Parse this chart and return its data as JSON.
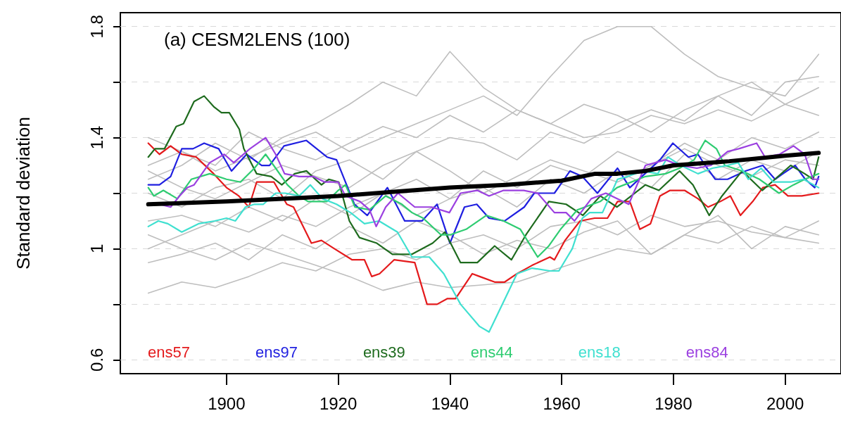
{
  "chart_data": {
    "type": "line",
    "title": "(a) CESM2LENS (100)",
    "ylabel": "Standard deviation",
    "xlim": [
      1881,
      2010
    ],
    "xticks": [
      1900,
      1920,
      1940,
      1960,
      1980,
      2000
    ],
    "ylim": [
      0.55,
      1.85
    ],
    "yticks": [
      0.6,
      {
        "value": 0.8,
        "label": null
      },
      1.0,
      {
        "value": 1.2,
        "label": null
      },
      1.4,
      {
        "value": 1.6,
        "label": null
      },
      1.8
    ],
    "grid": "y",
    "legend": "bottom",
    "marker": "none",
    "line_style": "solid",
    "series": [
      {
        "color": "#bebebe",
        "x": [
          1886,
          1892,
          1898,
          1904,
          1910,
          1916,
          1922,
          1928,
          1934,
          1940,
          1946,
          1952,
          1958,
          1964,
          1970,
          1976,
          1982,
          1988,
          1994,
          2000,
          2006
        ],
        "values": [
          1.3,
          1.35,
          1.28,
          1.33,
          1.38,
          1.42,
          1.35,
          1.4,
          1.45,
          1.5,
          1.55,
          1.48,
          1.62,
          1.75,
          1.8,
          1.8,
          1.7,
          1.62,
          1.58,
          1.55,
          1.7
        ]
      },
      {
        "color": "#bebebe",
        "x": [
          1886,
          1892,
          1898,
          1904,
          1910,
          1916,
          1922,
          1928,
          1934,
          1940,
          1946,
          1952,
          1958,
          1964,
          1970,
          1976,
          1982,
          1988,
          1994,
          2000,
          2006
        ],
        "values": [
          1.25,
          1.3,
          1.38,
          1.32,
          1.4,
          1.45,
          1.52,
          1.6,
          1.55,
          1.71,
          1.58,
          1.5,
          1.45,
          1.4,
          1.42,
          1.48,
          1.45,
          1.5,
          1.46,
          1.52,
          1.48
        ]
      },
      {
        "color": "#bebebe",
        "x": [
          1886,
          1892,
          1898,
          1904,
          1910,
          1916,
          1922,
          1928,
          1934,
          1940,
          1946,
          1952,
          1958,
          1964,
          1970,
          1976,
          1982,
          1988,
          1994,
          2000,
          2006
        ],
        "values": [
          0.84,
          0.88,
          0.86,
          0.9,
          0.95,
          0.92,
          0.98,
          1.0,
          0.96,
          1.02,
          1.05,
          1.0,
          1.08,
          1.1,
          1.05,
          1.12,
          1.08,
          1.1,
          1.06,
          1.04,
          1.02
        ]
      },
      {
        "color": "#bebebe",
        "x": [
          1886,
          1892,
          1898,
          1904,
          1910,
          1916,
          1922,
          1928,
          1934,
          1940,
          1946,
          1952,
          1958,
          1964,
          1970,
          1976,
          1982,
          1988,
          1994,
          2000,
          2006
        ],
        "values": [
          1.05,
          1.0,
          0.96,
          1.02,
          0.98,
          0.94,
          0.9,
          0.85,
          0.88,
          0.86,
          0.87,
          0.88,
          0.92,
          0.96,
          1.0,
          0.98,
          1.05,
          1.02,
          1.08,
          1.04,
          1.1
        ]
      },
      {
        "color": "#bebebe",
        "x": [
          1886,
          1892,
          1898,
          1904,
          1910,
          1916,
          1922,
          1928,
          1934,
          1940,
          1946,
          1952,
          1958,
          1964,
          1970,
          1976,
          1982,
          1988,
          1994,
          2000,
          2006
        ],
        "values": [
          1.2,
          1.15,
          1.22,
          1.25,
          1.18,
          1.28,
          1.32,
          1.25,
          1.35,
          1.4,
          1.38,
          1.32,
          1.42,
          1.38,
          1.45,
          1.5,
          1.46,
          1.55,
          1.6,
          1.52,
          1.58
        ]
      },
      {
        "color": "#bebebe",
        "x": [
          1886,
          1892,
          1898,
          1904,
          1910,
          1916,
          1922,
          1928,
          1934,
          1940,
          1946,
          1952,
          1958,
          1964,
          1970,
          1976,
          1982,
          1988,
          1994,
          2000,
          2006
        ],
        "values": [
          1.0,
          1.05,
          1.1,
          1.06,
          1.12,
          1.08,
          1.15,
          1.2,
          1.12,
          1.18,
          1.22,
          1.15,
          1.25,
          1.2,
          1.28,
          1.22,
          1.34,
          1.25,
          1.32,
          1.28,
          1.35
        ]
      },
      {
        "color": "#bebebe",
        "x": [
          1886,
          1892,
          1898,
          1904,
          1910,
          1916,
          1922,
          1928,
          1934,
          1940,
          1946,
          1952,
          1958,
          1964,
          1970,
          1976,
          1982,
          1988,
          1994,
          2000,
          2006
        ],
        "values": [
          1.4,
          1.35,
          1.3,
          1.42,
          1.36,
          1.32,
          1.38,
          1.44,
          1.4,
          1.48,
          1.42,
          1.5,
          1.45,
          1.52,
          1.48,
          1.42,
          1.5,
          1.55,
          1.48,
          1.6,
          1.62
        ]
      },
      {
        "color": "#bebebe",
        "x": [
          1886,
          1892,
          1898,
          1904,
          1910,
          1916,
          1922,
          1928,
          1934,
          1940,
          1946,
          1952,
          1958,
          1964,
          1970,
          1976,
          1982,
          1988,
          1994,
          2000,
          2006
        ],
        "values": [
          0.95,
          0.98,
          1.02,
          0.96,
          1.05,
          1.0,
          1.08,
          1.02,
          1.1,
          1.05,
          0.98,
          1.03,
          1.0,
          1.06,
          1.1,
          0.98,
          1.05,
          1.12,
          1.0,
          1.08,
          1.05
        ]
      },
      {
        "color": "#bebebe",
        "x": [
          1886,
          1892,
          1898,
          1904,
          1910,
          1916,
          1922,
          1928,
          1934,
          1940,
          1946,
          1952,
          1958,
          1964,
          1970,
          1976,
          1982,
          1988,
          1994,
          2000,
          2006
        ],
        "values": [
          1.1,
          1.12,
          1.08,
          1.15,
          1.1,
          1.18,
          1.12,
          1.2,
          1.25,
          1.18,
          1.28,
          1.22,
          1.3,
          1.26,
          1.35,
          1.3,
          1.38,
          1.32,
          1.4,
          1.36,
          1.42
        ]
      },
      {
        "color": "#bebebe",
        "x": [
          1886,
          1892,
          1898,
          1904,
          1910,
          1916,
          1922,
          1928,
          1934,
          1940,
          1946,
          1952,
          1958,
          1964,
          1970,
          1976,
          1982,
          1988,
          1994,
          2000,
          2006
        ],
        "values": [
          1.28,
          1.22,
          1.18,
          1.24,
          1.3,
          1.26,
          1.22,
          1.3,
          1.35,
          1.28,
          1.2,
          1.26,
          1.32,
          1.28,
          1.24,
          1.3,
          1.36,
          1.3,
          1.26,
          1.32,
          1.3
        ]
      },
      {
        "name": "ens57",
        "color": "#e41a1c",
        "x": [
          1886,
          1888,
          1890,
          1892,
          1894.6,
          1897.7,
          1900,
          1902.2,
          1904,
          1905.4,
          1908.5,
          1910.8,
          1912,
          1915.2,
          1917,
          1919.3,
          1922.5,
          1924.7,
          1926,
          1927.4,
          1930,
          1933.7,
          1935.9,
          1937.7,
          1939.5,
          1941,
          1944,
          1945.3,
          1948,
          1949.8,
          1952,
          1954.7,
          1957.9,
          1958.7,
          1960.6,
          1963.3,
          1965.9,
          1968.2,
          1970,
          1972.2,
          1974,
          1975.9,
          1977.6,
          1979.4,
          1982,
          1984.4,
          1986.2,
          1988.4,
          1990.2,
          1992,
          1994.2,
          1996,
          1998.2,
          2000.5,
          2003,
          2006
        ],
        "values": [
          1.38,
          1.34,
          1.37,
          1.34,
          1.33,
          1.27,
          1.22,
          1.19,
          1.15,
          1.24,
          1.24,
          1.16,
          1.15,
          1.02,
          1.03,
          1.0,
          0.96,
          0.96,
          0.9,
          0.91,
          0.96,
          0.95,
          0.8,
          0.8,
          0.82,
          0.82,
          0.91,
          0.9,
          0.88,
          0.88,
          0.91,
          0.94,
          0.97,
          0.96,
          1.03,
          1.1,
          1.11,
          1.11,
          1.17,
          1.17,
          1.07,
          1.09,
          1.19,
          1.21,
          1.21,
          1.18,
          1.15,
          1.17,
          1.19,
          1.12,
          1.17,
          1.22,
          1.23,
          1.19,
          1.19,
          1.2
        ]
      },
      {
        "name": "ens97",
        "color": "#1f1fe0",
        "x": [
          1886,
          1888,
          1890,
          1892,
          1894,
          1896,
          1898.6,
          1900.9,
          1903.6,
          1906.3,
          1907.7,
          1910.3,
          1914.3,
          1918,
          1919.7,
          1922.9,
          1925.2,
          1928.8,
          1931.9,
          1935,
          1937.7,
          1940,
          1942.6,
          1944.8,
          1947,
          1949.8,
          1953.3,
          1955.1,
          1958.7,
          1961.5,
          1963.7,
          1966.4,
          1970,
          1972.2,
          1974.9,
          1977.6,
          1979.9,
          1982.7,
          1984.4,
          1985.7,
          1987.5,
          1989.7,
          1992.9,
          1996,
          1998.2,
          1999.6,
          2001.8,
          2003.6,
          2005.3,
          2006
        ],
        "values": [
          1.23,
          1.23,
          1.26,
          1.36,
          1.36,
          1.38,
          1.36,
          1.28,
          1.34,
          1.3,
          1.3,
          1.37,
          1.39,
          1.33,
          1.32,
          1.16,
          1.12,
          1.22,
          1.1,
          1.1,
          1.16,
          1.02,
          1.15,
          1.16,
          1.11,
          1.1,
          1.15,
          1.2,
          1.2,
          1.28,
          1.26,
          1.2,
          1.29,
          1.22,
          1.27,
          1.32,
          1.38,
          1.33,
          1.34,
          1.3,
          1.25,
          1.25,
          1.28,
          1.3,
          1.25,
          1.27,
          1.3,
          1.25,
          1.22,
          1.26
        ]
      },
      {
        "name": "ens39",
        "color": "#1e6b1e",
        "x": [
          1886,
          1887.2,
          1888.9,
          1891,
          1892.3,
          1894.2,
          1896,
          1897.8,
          1899.1,
          1900.5,
          1902.3,
          1903.1,
          1905.4,
          1908,
          1909.9,
          1912.2,
          1914.3,
          1917,
          1918.3,
          1920.1,
          1922,
          1923.8,
          1926.9,
          1929.7,
          1933.2,
          1936.9,
          1939.1,
          1941.9,
          1944.9,
          1948,
          1951,
          1953.6,
          1957.7,
          1960.8,
          1963.8,
          1966.9,
          1969.9,
          1975,
          1977.4,
          1981.1,
          1983.5,
          1986.4,
          1988.7,
          1992.3,
          1995.9,
          2001,
          2003.5,
          2005,
          2006
        ],
        "values": [
          1.33,
          1.36,
          1.36,
          1.44,
          1.45,
          1.53,
          1.55,
          1.51,
          1.49,
          1.49,
          1.43,
          1.36,
          1.27,
          1.26,
          1.23,
          1.27,
          1.28,
          1.23,
          1.25,
          1.24,
          1.1,
          1.04,
          1.02,
          0.98,
          0.98,
          1.02,
          1.06,
          0.95,
          0.95,
          1.01,
          0.96,
          1.05,
          1.17,
          1.16,
          1.12,
          1.19,
          1.15,
          1.23,
          1.21,
          1.28,
          1.23,
          1.12,
          1.19,
          1.28,
          1.21,
          1.3,
          1.27,
          1.25,
          1.33
        ]
      },
      {
        "name": "ens44",
        "color": "#2ecc71",
        "x": [
          1886,
          1887,
          1888.7,
          1891.2,
          1893.7,
          1897,
          1900,
          1902.5,
          1905,
          1907,
          1908.8,
          1910.9,
          1913,
          1914.6,
          1918,
          1920,
          1921.3,
          1923,
          1925.6,
          1928.5,
          1931.4,
          1933.2,
          1935.2,
          1938.4,
          1940,
          1942.9,
          1946.5,
          1949.6,
          1952.6,
          1955.7,
          1957.7,
          1959.8,
          1962.8,
          1966.9,
          1969.9,
          1975,
          1978.6,
          1981.1,
          1983.7,
          1985.7,
          1987.7,
          1989.2,
          1992.3,
          1995.4,
          1998.9,
          2001.5,
          2003.5,
          2006
        ],
        "values": [
          1.22,
          1.19,
          1.21,
          1.18,
          1.25,
          1.27,
          1.25,
          1.24,
          1.29,
          1.34,
          1.29,
          1.23,
          1.19,
          1.17,
          1.17,
          1.21,
          1.23,
          1.15,
          1.14,
          1.19,
          1.16,
          1.13,
          1.11,
          1.05,
          1.05,
          1.07,
          1.12,
          1.1,
          1.07,
          0.97,
          1.01,
          1.07,
          1.14,
          1.17,
          1.22,
          1.26,
          1.27,
          1.29,
          1.32,
          1.39,
          1.36,
          1.3,
          1.28,
          1.25,
          1.2,
          1.23,
          1.25,
          1.27
        ]
      },
      {
        "name": "ens18",
        "color": "#40e0d0",
        "x": [
          1886,
          1887.8,
          1889.5,
          1892,
          1895,
          1897.9,
          1900,
          1901.6,
          1903.4,
          1905,
          1906.6,
          1908.8,
          1910.5,
          1913,
          1915,
          1917.2,
          1919.7,
          1922.2,
          1924.7,
          1927.3,
          1930.6,
          1933.2,
          1936.3,
          1938.9,
          1941.9,
          1945.3,
          1947,
          1952,
          1954.7,
          1957.9,
          1959.5,
          1961.9,
          1963.7,
          1965,
          1967.3,
          1970,
          1971.8,
          1974.5,
          1977.2,
          1979,
          1981.3,
          1984.4,
          1987,
          1989.7,
          1991.6,
          1993.4,
          1995.7,
          1997.9,
          2001,
          2003.3,
          2006
        ],
        "values": [
          1.08,
          1.1,
          1.09,
          1.06,
          1.09,
          1.1,
          1.11,
          1.1,
          1.15,
          1.16,
          1.16,
          1.2,
          1.2,
          1.19,
          1.23,
          1.18,
          1.16,
          1.13,
          1.09,
          1.1,
          1.06,
          0.97,
          0.97,
          0.91,
          0.8,
          0.72,
          0.7,
          0.91,
          0.93,
          0.92,
          0.92,
          1.0,
          1.11,
          1.13,
          1.13,
          1.25,
          1.26,
          1.28,
          1.27,
          1.33,
          1.3,
          1.27,
          1.29,
          1.3,
          1.31,
          1.25,
          1.29,
          1.24,
          1.24,
          1.25,
          1.22
        ]
      },
      {
        "name": "ens84",
        "color": "#9b40e0",
        "x": [
          1888,
          1890,
          1891.6,
          1893,
          1894.2,
          1897,
          1899.6,
          1901.3,
          1904.2,
          1907,
          1908.8,
          1910.4,
          1913,
          1915.5,
          1917.6,
          1920,
          1921.3,
          1923.9,
          1925.6,
          1926.8,
          1928.5,
          1930.7,
          1933.7,
          1936.7,
          1939.9,
          1941.9,
          1944.9,
          1947,
          1949.6,
          1953.2,
          1955.7,
          1958.7,
          1960.8,
          1962.3,
          1965.3,
          1967.9,
          1972,
          1975,
          1978.6,
          1981.1,
          1984.2,
          1986.7,
          1989.7,
          1991.7,
          1994.9,
          1996.4,
          1999,
          2001.5,
          2003.5,
          2005,
          2006
        ],
        "values": [
          1.16,
          1.15,
          1.19,
          1.22,
          1.23,
          1.31,
          1.34,
          1.31,
          1.36,
          1.4,
          1.34,
          1.27,
          1.26,
          1.26,
          1.24,
          1.24,
          1.19,
          1.17,
          1.14,
          1.08,
          1.15,
          1.2,
          1.15,
          1.15,
          1.13,
          1.2,
          1.21,
          1.19,
          1.21,
          1.21,
          1.2,
          1.13,
          1.13,
          1.1,
          1.18,
          1.2,
          1.16,
          1.3,
          1.32,
          1.3,
          1.29,
          1.3,
          1.35,
          1.36,
          1.38,
          1.33,
          1.34,
          1.37,
          1.34,
          1.25,
          1.25
        ]
      },
      {
        "color": "#000000",
        "x": [
          1886,
          1900,
          1910,
          1920,
          1930,
          1940,
          1950,
          1960,
          1966,
          1970,
          1975,
          1980,
          1990,
          2000,
          2006
        ],
        "values": [
          1.16,
          1.17,
          1.18,
          1.19,
          1.205,
          1.22,
          1.23,
          1.245,
          1.27,
          1.27,
          1.28,
          1.3,
          1.315,
          1.335,
          1.345
        ]
      }
    ]
  }
}
